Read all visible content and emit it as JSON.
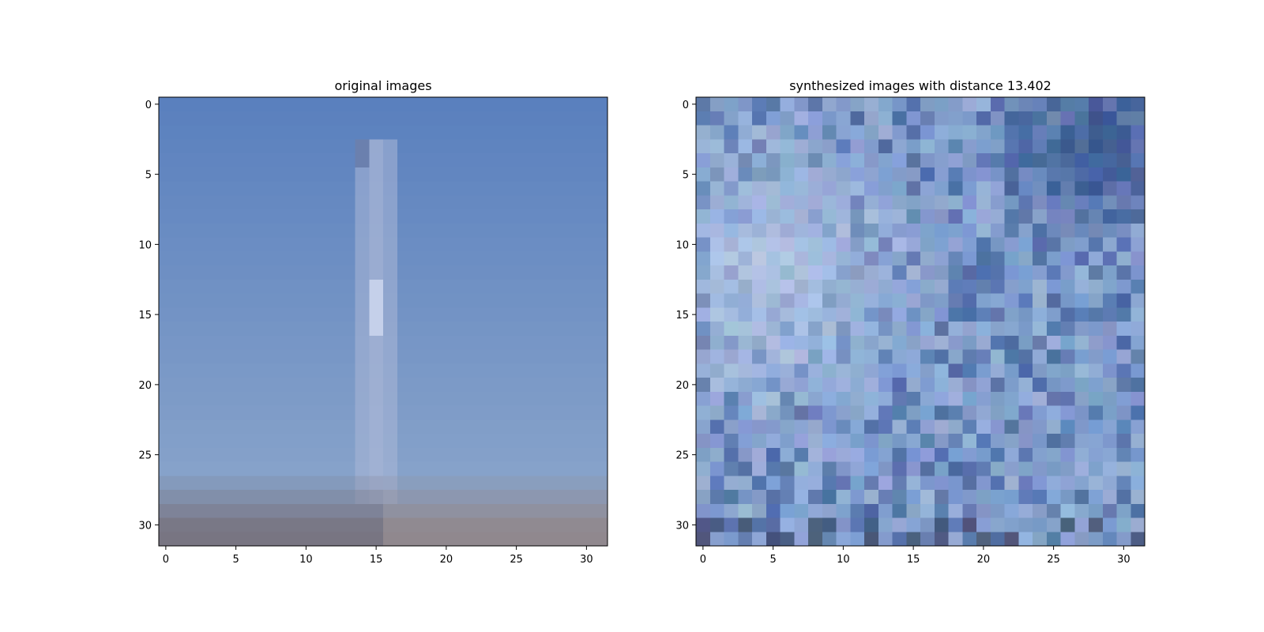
{
  "figure": {
    "panels": [
      {
        "id": "original",
        "title": "original images",
        "grid_size": 32,
        "xticks": [
          "0",
          "5",
          "10",
          "15",
          "20",
          "25",
          "30"
        ],
        "yticks": [
          "0",
          "5",
          "10",
          "15",
          "20",
          "25",
          "30"
        ]
      },
      {
        "id": "synthesized",
        "title": "synthesized images with distance 13.402",
        "grid_size": 32,
        "xticks": [
          "0",
          "5",
          "10",
          "15",
          "20",
          "25",
          "30"
        ],
        "yticks": [
          "0",
          "5",
          "10",
          "15",
          "20",
          "25",
          "30"
        ]
      }
    ],
    "colors": {
      "sky_top": "#5a80be",
      "sky_bottom": "#8ea8cc",
      "tower": "#a9b6d6",
      "tower_bright": "#c5d0ea",
      "ground_dark": "#6a6a7a",
      "ground_light": "#9a8f93",
      "noise_base": "#7f9ccc",
      "noise_dark": "#2c4a86",
      "noise_light": "#c7d6f0"
    }
  }
}
